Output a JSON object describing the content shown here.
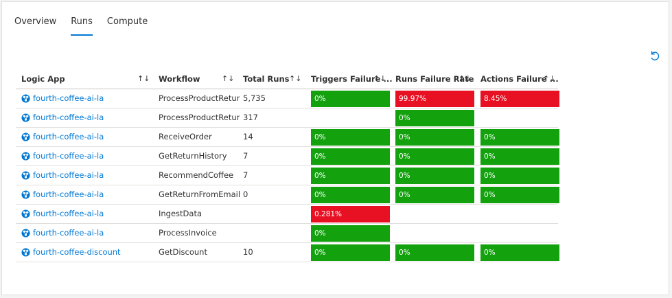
{
  "tabs": [
    {
      "label": "Overview",
      "active": false
    },
    {
      "label": "Runs",
      "active": true
    },
    {
      "label": "Compute",
      "active": false
    }
  ],
  "refresh_icon": "refresh-icon",
  "colors": {
    "good": "#13a10e",
    "bad": "#e81123",
    "link": "#0078d4"
  },
  "columns": [
    "Logic App",
    "Workflow",
    "Total Runs",
    "Triggers Failure ...",
    "Runs Failure Rate",
    "Actions Failure ..."
  ],
  "rows": [
    {
      "app": "fourth-coffee-ai-la",
      "workflow": "ProcessProductRetur...",
      "total": "5,735",
      "trig": {
        "text": "0%",
        "status": "good"
      },
      "runs": {
        "text": "99.97%",
        "status": "bad"
      },
      "acts": {
        "text": "8.45%",
        "status": "bad"
      }
    },
    {
      "app": "fourth-coffee-ai-la",
      "workflow": "ProcessProductReturn",
      "total": "317",
      "trig": null,
      "runs": {
        "text": "0%",
        "status": "good"
      },
      "acts": null
    },
    {
      "app": "fourth-coffee-ai-la",
      "workflow": "ReceiveOrder",
      "total": "14",
      "trig": {
        "text": "0%",
        "status": "good"
      },
      "runs": {
        "text": "0%",
        "status": "good"
      },
      "acts": {
        "text": "0%",
        "status": "good"
      }
    },
    {
      "app": "fourth-coffee-ai-la",
      "workflow": "GetReturnHistory",
      "total": "7",
      "trig": {
        "text": "0%",
        "status": "good"
      },
      "runs": {
        "text": "0%",
        "status": "good"
      },
      "acts": {
        "text": "0%",
        "status": "good"
      }
    },
    {
      "app": "fourth-coffee-ai-la",
      "workflow": "RecommendCoffee",
      "total": "7",
      "trig": {
        "text": "0%",
        "status": "good"
      },
      "runs": {
        "text": "0%",
        "status": "good"
      },
      "acts": {
        "text": "0%",
        "status": "good"
      }
    },
    {
      "app": "fourth-coffee-ai-la",
      "workflow": "GetReturnFromEmail",
      "total": "0",
      "trig": {
        "text": "0%",
        "status": "good"
      },
      "runs": {
        "text": "0%",
        "status": "good"
      },
      "acts": {
        "text": "0%",
        "status": "good"
      }
    },
    {
      "app": "fourth-coffee-ai-la",
      "workflow": "IngestData",
      "total": "",
      "trig": {
        "text": "0.281%",
        "status": "bad"
      },
      "runs": null,
      "acts": null
    },
    {
      "app": "fourth-coffee-ai-la",
      "workflow": "ProcessInvoice",
      "total": "",
      "trig": {
        "text": "0%",
        "status": "good"
      },
      "runs": null,
      "acts": null
    },
    {
      "app": "fourth-coffee-discount",
      "workflow": "GetDiscount",
      "total": "10",
      "trig": {
        "text": "0%",
        "status": "good"
      },
      "runs": {
        "text": "0%",
        "status": "good"
      },
      "acts": {
        "text": "0%",
        "status": "good"
      }
    }
  ]
}
